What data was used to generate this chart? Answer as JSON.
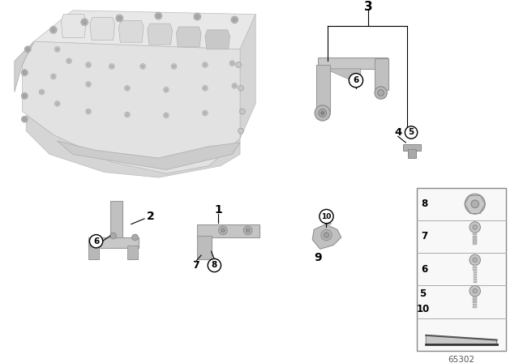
{
  "bg_color": "#ffffff",
  "diagram_number": "65302",
  "manifold_color": "#e0e0e0",
  "part_color": "#c0c0c0",
  "panel_bg": "#f0f0f0",
  "line_color": "#000000",
  "label_color": "#000000"
}
